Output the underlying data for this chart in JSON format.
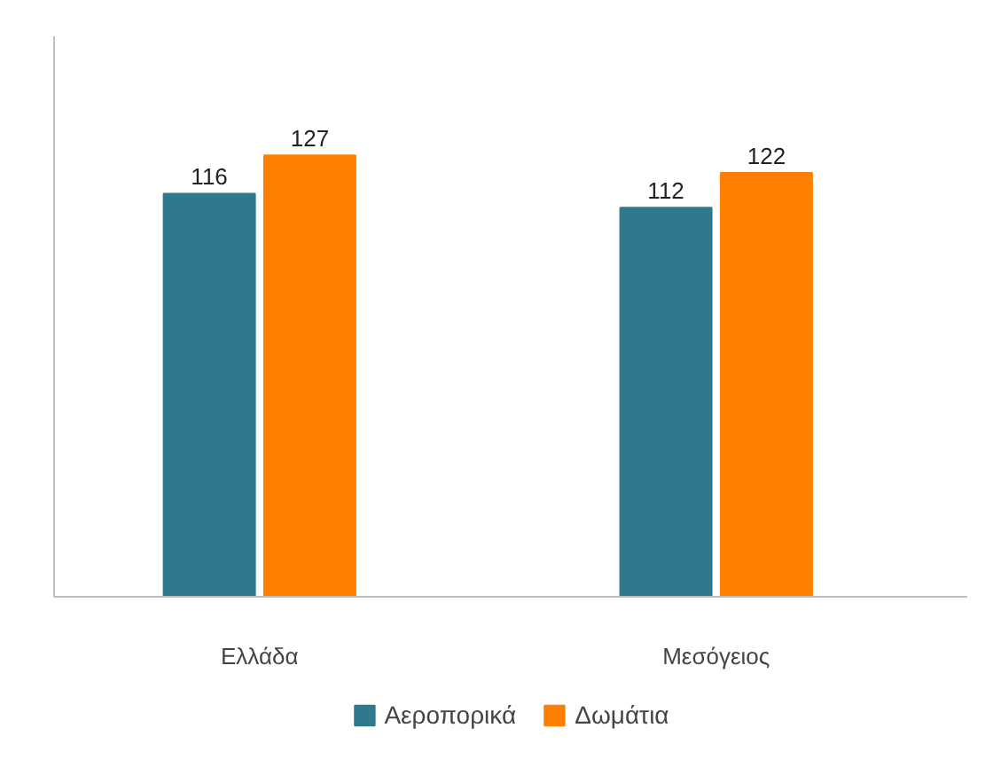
{
  "chart_data": {
    "type": "bar",
    "categories": [
      "Ελλάδα",
      "Μεσόγειος"
    ],
    "series": [
      {
        "name": "Αεροπορικά",
        "color": "#2e7a8c",
        "values": [
          116,
          112
        ]
      },
      {
        "name": "Δωμάτια",
        "color": "#ff7f00",
        "values": [
          127,
          122
        ]
      }
    ],
    "data_labels": true,
    "legend": "bottom",
    "grid": false,
    "tick_labels": "x"
  }
}
